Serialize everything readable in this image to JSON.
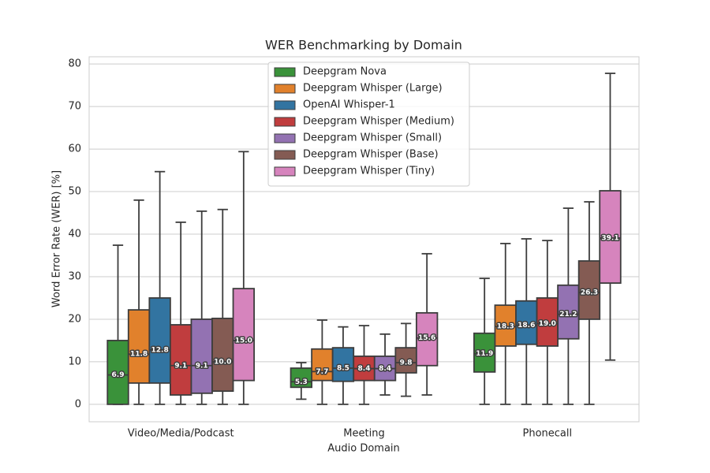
{
  "chart_data": {
    "type": "box",
    "title": "WER Benchmarking by Domain",
    "x_label": "Audio Domain",
    "y_label": "Word Error Rate (WER) [%]",
    "categories": [
      "Video/Media/Podcast",
      "Meeting",
      "Phonecall"
    ],
    "ylim": [
      -4.1,
      81.7
    ],
    "yticks": [
      0,
      10,
      20,
      30,
      40,
      50,
      60,
      70,
      80
    ],
    "grid": true,
    "legend": "upper center",
    "series": [
      {
        "name": "Deepgram Nova",
        "color": "#3a923a",
        "whislo": [
          0,
          1.2,
          0
        ],
        "q1": [
          0,
          4,
          7.6
        ],
        "median": [
          6.9,
          5.3,
          11.9
        ],
        "q3": [
          15,
          8.5,
          16.7
        ],
        "whishi": [
          37.4,
          9.8,
          29.6
        ],
        "value_labels": [
          "6.9",
          "5.3",
          "11.9"
        ]
      },
      {
        "name": "Deepgram Whisper (Large)",
        "color": "#e1812c",
        "whislo": [
          0,
          0,
          0
        ],
        "q1": [
          5,
          5.6,
          13.7
        ],
        "median": [
          11.8,
          7.7,
          18.3
        ],
        "q3": [
          22.2,
          13,
          23.3
        ],
        "whishi": [
          48,
          19.8,
          37.8
        ],
        "value_labels": [
          "11.8",
          "7.7",
          "18.3"
        ]
      },
      {
        "name": "OpenAI Whisper-1",
        "color": "#3274a1",
        "whislo": [
          0,
          0,
          0
        ],
        "q1": [
          5,
          5.4,
          14.1
        ],
        "median": [
          12.8,
          8.5,
          18.6
        ],
        "q3": [
          25,
          13.3,
          24.3
        ],
        "whishi": [
          54.7,
          18.2,
          38.9
        ],
        "value_labels": [
          "12.8",
          "8.5",
          "18.6"
        ]
      },
      {
        "name": "Deepgram Whisper (Medium)",
        "color": "#c03d3e",
        "whislo": [
          0,
          0,
          0
        ],
        "q1": [
          2.2,
          5.6,
          13.7
        ],
        "median": [
          9.1,
          8.4,
          19.0
        ],
        "q3": [
          18.7,
          11.3,
          25
        ],
        "whishi": [
          42.8,
          18.5,
          38.5
        ],
        "value_labels": [
          "9.1",
          "8.4",
          "19.0"
        ]
      },
      {
        "name": "Deepgram Whisper (Small)",
        "color": "#9372b2",
        "whislo": [
          0,
          2.2,
          0
        ],
        "q1": [
          2.6,
          5.6,
          15.4
        ],
        "median": [
          9.1,
          8.4,
          21.2
        ],
        "q3": [
          20,
          11.3,
          28
        ],
        "whishi": [
          45.4,
          16.5,
          46.1
        ],
        "value_labels": [
          "9.1",
          "8.4",
          "21.2"
        ]
      },
      {
        "name": "Deepgram Whisper (Base)",
        "color": "#845b53",
        "whislo": [
          0,
          1.9,
          0
        ],
        "q1": [
          3.1,
          7.4,
          20
        ],
        "median": [
          10.0,
          9.8,
          26.3
        ],
        "q3": [
          20.2,
          13.3,
          33.7
        ],
        "whishi": [
          45.8,
          19,
          47.6
        ],
        "value_labels": [
          "10.0",
          "9.8",
          "26.3"
        ]
      },
      {
        "name": "Deepgram Whisper (Tiny)",
        "color": "#d684bd",
        "whislo": [
          0,
          2.2,
          10.4
        ],
        "q1": [
          5.6,
          9.1,
          28.5
        ],
        "median": [
          15.0,
          15.6,
          39.1
        ],
        "q3": [
          27.2,
          21.5,
          50.2
        ],
        "whishi": [
          59.4,
          35.4,
          77.8
        ],
        "value_labels": [
          "15.0",
          "15.6",
          "39.1"
        ]
      }
    ]
  }
}
